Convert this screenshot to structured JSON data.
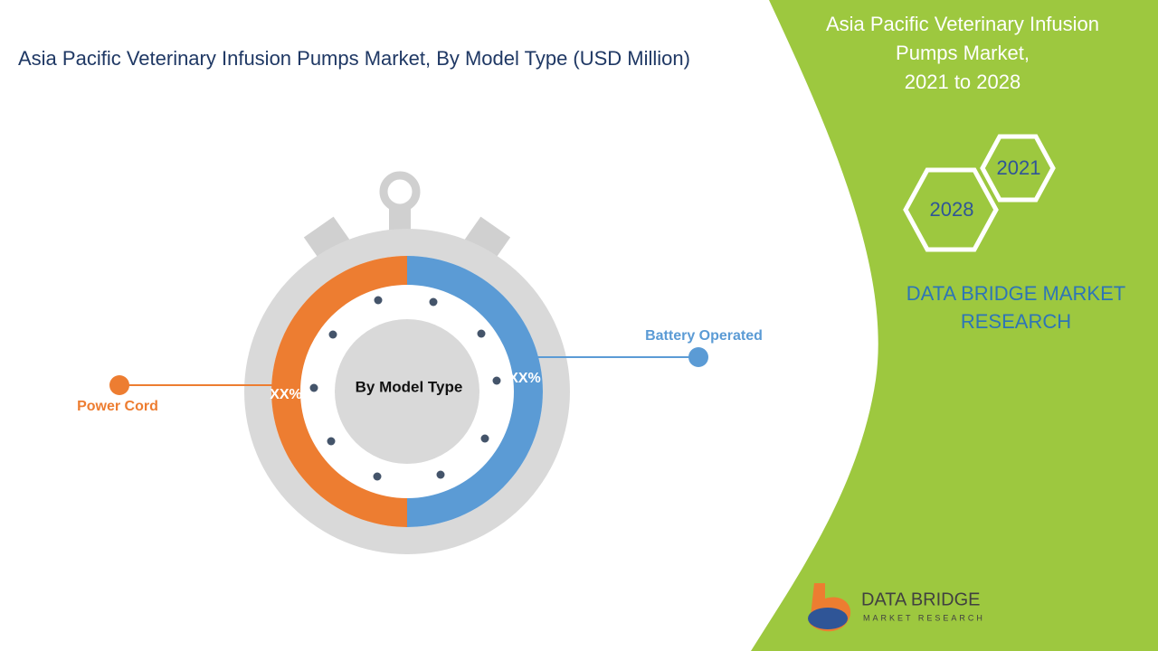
{
  "title": "Asia Pacific Veterinary Infusion Pumps Market, By Model Type (USD Million)",
  "side_panel": {
    "heading": [
      "Asia Pacific Veterinary Infusion",
      "Pumps Market,",
      "2021 to 2028"
    ],
    "hexagons": [
      "2021",
      "2028"
    ],
    "brand": [
      "DATA BRIDGE MARKET",
      "RESEARCH"
    ]
  },
  "center_label": "By Model Type",
  "segments": [
    {
      "name": "Battery Operated",
      "label": "XX%"
    },
    {
      "name": "Power Cord",
      "label": "XX%"
    }
  ],
  "logo": {
    "name": "DATA BRIDGE",
    "tagline": "MARKET RESEARCH"
  }
}
